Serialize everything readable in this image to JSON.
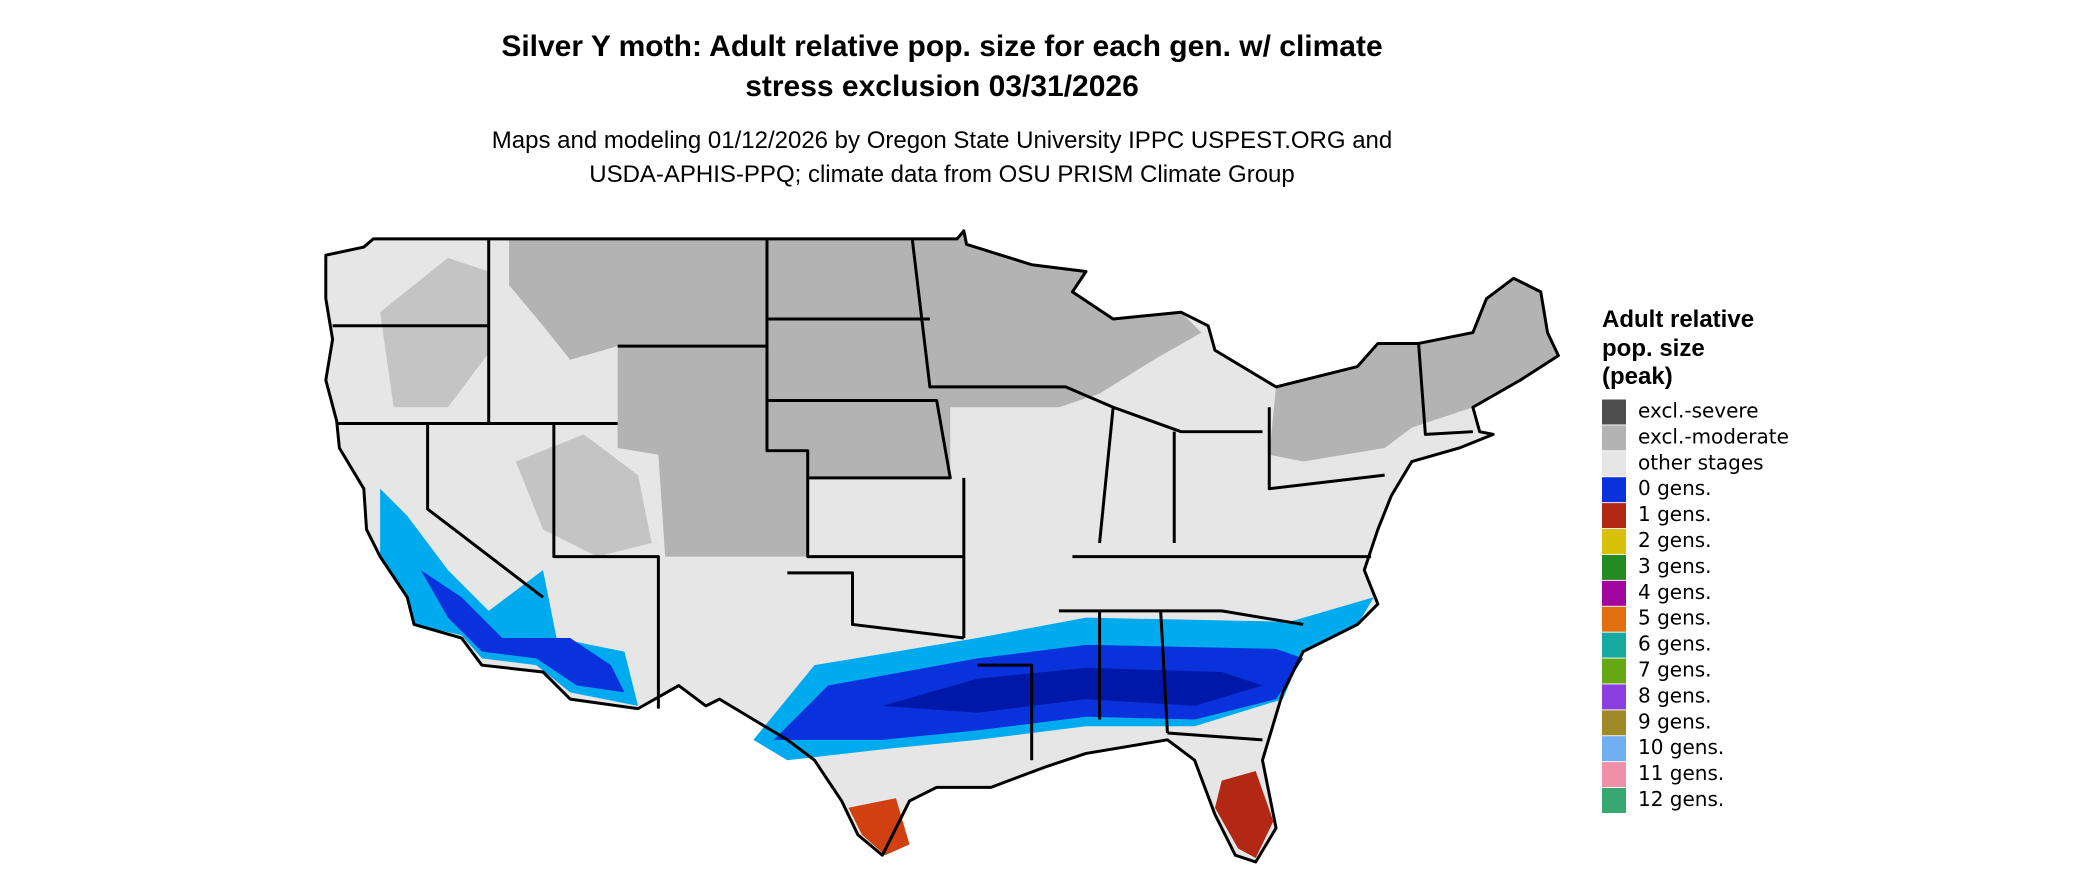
{
  "title": [
    "Silver Y moth: Adult relative pop. size for each gen. w/ climate",
    "stress exclusion 03/31/2026"
  ],
  "subtitle": [
    "Maps and modeling 01/12/2026 by Oregon State University IPPC USPEST.ORG and",
    "USDA-APHIS-PPQ; climate data from OSU PRISM Climate Group"
  ],
  "legend": {
    "title": [
      "Adult relative",
      "pop. size",
      "(peak)"
    ],
    "items": [
      {
        "label": "excl.-severe",
        "color": "#4d4d4d"
      },
      {
        "label": "excl.-moderate",
        "color": "#b3b3b3"
      },
      {
        "label": "other stages",
        "color": "#e6e6e6"
      },
      {
        "label": "0 gens.",
        "color": "#0a32dc"
      },
      {
        "label": "1 gens.",
        "color": "#b32814"
      },
      {
        "label": "2 gens.",
        "color": "#d9c00a"
      },
      {
        "label": "3 gens.",
        "color": "#228b22"
      },
      {
        "label": "4 gens.",
        "color": "#a0069e"
      },
      {
        "label": "5 gens.",
        "color": "#e0700f"
      },
      {
        "label": "6 gens.",
        "color": "#17a8a0"
      },
      {
        "label": "7 gens.",
        "color": "#66a814"
      },
      {
        "label": "8 gens.",
        "color": "#8a3fe0"
      },
      {
        "label": "9 gens.",
        "color": "#a08a28"
      },
      {
        "label": "10 gens.",
        "color": "#70b0f0"
      },
      {
        "label": "11 gens.",
        "color": "#f090a8"
      },
      {
        "label": "12 gens.",
        "color": "#36a870"
      }
    ]
  }
}
